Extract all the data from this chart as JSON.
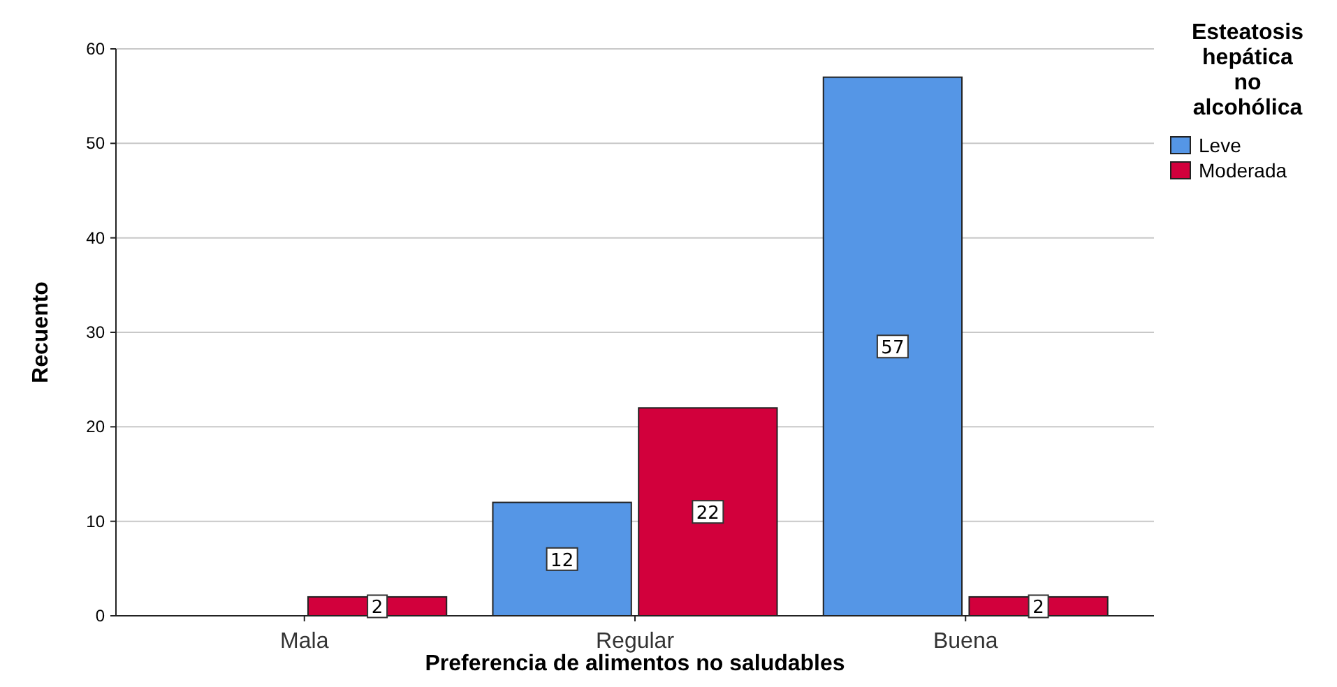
{
  "chart_data": {
    "type": "bar",
    "xlabel": "Preferencia de alimentos no saludables",
    "ylabel": "Recuento",
    "legend_title": "Esteatosis hepática no alcohólica",
    "categories": [
      "Mala",
      "Regular",
      "Buena"
    ],
    "series": [
      {
        "name": "Leve",
        "color": "#5596e6",
        "values": [
          null,
          12,
          57
        ]
      },
      {
        "name": "Moderada",
        "color": "#d2003c",
        "values": [
          2,
          22,
          2
        ]
      }
    ],
    "ylim": [
      0,
      60
    ],
    "yticks": [
      0,
      10,
      20,
      30,
      40,
      50,
      60
    ],
    "grid": "y",
    "legend": "top right",
    "data_labels": true
  }
}
